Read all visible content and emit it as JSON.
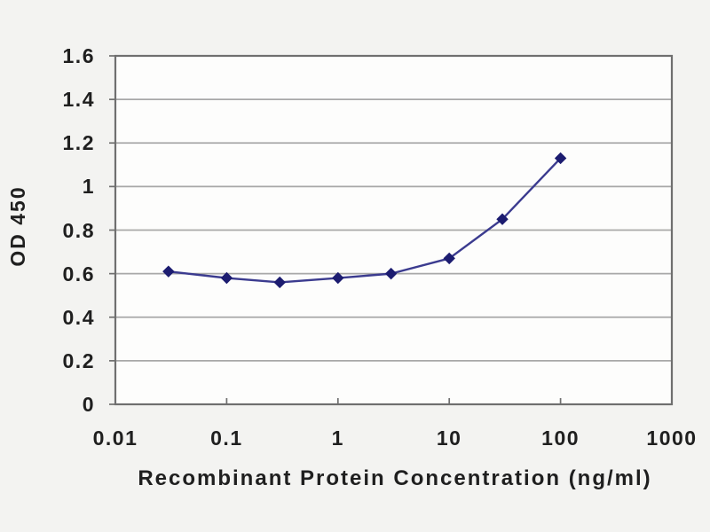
{
  "chart_data": {
    "type": "line",
    "title": "",
    "xlabel": "Recombinant Protein Concentration (ng/ml)",
    "ylabel": "OD 450",
    "xscale": "log",
    "xlim": [
      0.01,
      1000
    ],
    "ylim": [
      0,
      1.6
    ],
    "x": [
      0.03,
      0.1,
      0.3,
      1,
      3,
      10,
      30,
      100
    ],
    "y": [
      0.61,
      0.58,
      0.56,
      0.58,
      0.6,
      0.67,
      0.85,
      1.13
    ],
    "xticks": [
      0.01,
      0.1,
      1,
      10,
      100,
      1000
    ],
    "xtick_labels": [
      "0.01",
      "0.1",
      "1",
      "10",
      "100",
      "1000"
    ],
    "yticks": [
      0,
      0.2,
      0.4,
      0.6,
      0.8,
      1,
      1.2,
      1.4,
      1.6
    ],
    "ytick_labels": [
      "0",
      "0.2",
      "0.4",
      "0.6",
      "0.8",
      "1",
      "1.2",
      "1.4",
      "1.6"
    ],
    "grid": "horizontal",
    "legend": "none",
    "marker": "diamond",
    "colors": {
      "line": "#3b3b8f",
      "marker": "#1c1c70",
      "grid": "#a8a8a8",
      "axis_border": "#6f6f6f",
      "text": "#1f1f1f",
      "plot_background": "#fdfdfc",
      "page_background": "#f3f3f1"
    }
  }
}
